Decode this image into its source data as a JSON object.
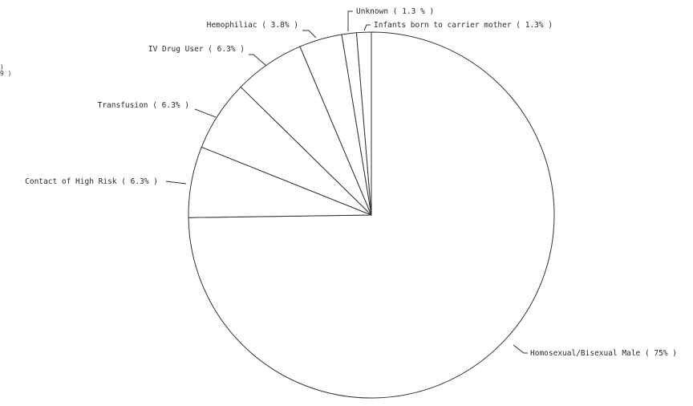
{
  "chart_data": {
    "type": "pie",
    "categories": [
      "Homosexual/Bisexual Male",
      "Contact of High Risk",
      "Transfusion",
      "IV Drug User",
      "Hemophiliac",
      "Unknown",
      "Infants born to carrier mother"
    ],
    "values": [
      75,
      6.3,
      6.3,
      6.3,
      3.8,
      1.3,
      1.3
    ],
    "labels": [
      "Homosexual/Bisexual Male ( 75% )",
      "Contact of High Risk ( 6.3% )",
      "Transfusion ( 6.3% )",
      "IV Drug User ( 6.3% )",
      "Hemophiliac ( 3.8% )",
      "Unknown ( 1.3 % )",
      "Infants born to carrier mother ( 1.3% )"
    ],
    "start_angle": "12 o'clock",
    "direction": "clockwise",
    "fill_color": "#ffffff",
    "line_color": "#333333"
  },
  "edge_fragment": ")\n9 )"
}
